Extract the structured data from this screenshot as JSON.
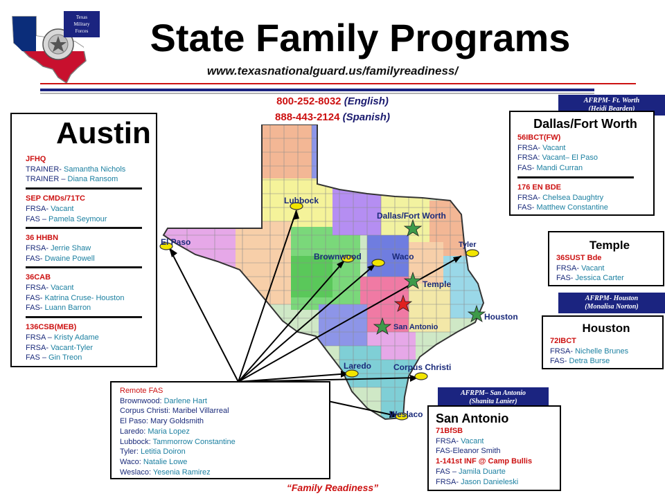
{
  "header": {
    "title": "State Family Programs",
    "url": "www.texasnationalguard.us/familyreadiness/",
    "logo_text": [
      "Texas",
      "Military",
      "Forces"
    ]
  },
  "phones": [
    {
      "number": "800-252-8032",
      "lang": "(English)"
    },
    {
      "number": "888-443-2124",
      "lang": "(Spanish)"
    }
  ],
  "colors": {
    "accent_red": "#cc1111",
    "navy": "#1a2a7a",
    "teal": "#1a7fa0",
    "afrpm_bg": "#1b2480"
  },
  "austin": {
    "title": "Austin",
    "groups": [
      {
        "unit": "JFHQ",
        "rows": [
          {
            "role": "TRAINER-",
            "name": "Samantha Nichols"
          },
          {
            "role": "TRAINER –",
            "name": "Diana Ransom"
          }
        ]
      },
      {
        "unit": "SEP CMDs/71TC",
        "rows": [
          {
            "role": "FRSA-",
            "name": "Vacant"
          },
          {
            "role": "FAS –",
            "name": "Pamela Seymour"
          }
        ]
      },
      {
        "unit": "36 HHBN",
        "rows": [
          {
            "role": "FRSA-",
            "name": "Jerrie Shaw"
          },
          {
            "role": "FAS-",
            "name": "Dwaine Powell"
          }
        ]
      },
      {
        "unit": "36CAB",
        "rows": [
          {
            "role": "FRSA-",
            "name": "Vacant"
          },
          {
            "role": "FAS-",
            "name": "Katrina Cruse- Houston"
          },
          {
            "role": "FAS-",
            "name": "Luann Barron"
          }
        ]
      },
      {
        "unit": "136CSB(MEB)",
        "rows": [
          {
            "role": "FRSA –",
            "name": "Kristy Adame"
          },
          {
            "role": "FRSA-",
            "name": "Vacant-Tyler"
          },
          {
            "role": "FAS –",
            "name": "Gin Treon"
          }
        ]
      }
    ]
  },
  "dfw": {
    "afrpm": [
      "AFRPM- Ft. Worth",
      "(Heidi Bearden)"
    ],
    "title": "Dallas/Fort Worth",
    "groups": [
      {
        "unit": "56IBCT(FW)",
        "rows": [
          {
            "role": "FRSA-",
            "name": "Vacant"
          },
          {
            "role": "FRSA:",
            "name": "Vacant– El Paso"
          },
          {
            "role": "FAS-",
            "name": "Mandi Curran"
          }
        ]
      },
      {
        "unit": "176 EN BDE",
        "rows": [
          {
            "role": "FRSA-",
            "name": "Chelsea Daughtry"
          },
          {
            "role": "FAS-",
            "name": "Matthew Constantine"
          }
        ]
      }
    ]
  },
  "temple": {
    "title": "Temple",
    "unit": "36SUST Bde",
    "rows": [
      {
        "role": "FRSA-",
        "name": "Vacant"
      },
      {
        "role": "FAS-",
        "name": "Jessica Carter"
      }
    ]
  },
  "houston": {
    "afrpm": [
      "AFRPM- Houston",
      "(Monalisa Norton)"
    ],
    "title": "Houston",
    "unit": "72IBCT",
    "rows": [
      {
        "role": "FRSA-",
        "name": "Nichelle Brunes"
      },
      {
        "role": "FAS-",
        "name": "Detra Burse"
      }
    ]
  },
  "san_antonio": {
    "afrpm": [
      "AFRPM– San Antonio",
      "(Shanita Lanier)"
    ],
    "title": "San Antonio",
    "lines": [
      {
        "role": "",
        "name": "71BfSB",
        "unit": true
      },
      {
        "role": "FRSA-",
        "name": "Vacant"
      },
      {
        "role": "FAS-",
        "name": "Eleanor Smith"
      },
      {
        "role": "",
        "name": "1-141st INF @ Camp Bullis",
        "unit": true
      },
      {
        "role": "FAS –",
        "name": "Jamila Duarte"
      },
      {
        "role": "FRSA-",
        "name": "Jason Danieleski"
      }
    ]
  },
  "remote": {
    "title": "Remote FAS",
    "rows": [
      {
        "city": "Brownwood:",
        "name": "Darlene Hart"
      },
      {
        "city": "Corpus Christi:",
        "name": "Maribel Villarreal"
      },
      {
        "city": "El Paso:",
        "name": "Mary Goldsmith"
      },
      {
        "city": "Laredo:",
        "name": "Maria Lopez"
      },
      {
        "city": "Lubbock:",
        "name": "Tammorrow Constantine"
      },
      {
        "city": "Tyler:",
        "name": "Letitia Doiron"
      },
      {
        "city": "Waco:",
        "name": "Natalie Lowe"
      },
      {
        "city": "Weslaco:",
        "name": "Yesenia Ramirez"
      }
    ]
  },
  "map_labels": {
    "lubbock": "Lubbock",
    "el_paso": "El Paso",
    "dfw": "Dallas/Fort Worth",
    "tyler": "Tyler",
    "brownwood": "Brownwood",
    "waco": "Waco",
    "temple": "Temple",
    "houston": "Houston",
    "san_antonio": "San Antonio",
    "laredo": "Laredo",
    "corpus_christi": "Corpus Christi",
    "weslaco": "Weslaco"
  },
  "tagline": "“Family Readiness”"
}
